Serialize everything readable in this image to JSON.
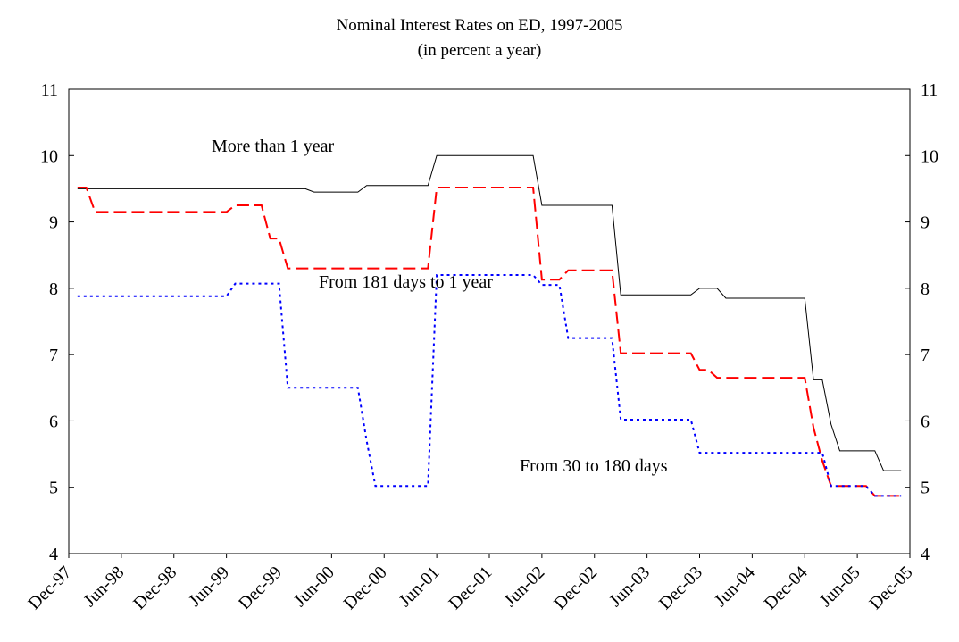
{
  "chart_data": {
    "type": "line",
    "title": "Nominal Interest Rates on ED, 1997-2005",
    "subtitle": "(in percent a year)",
    "categories": [
      "Dec-97",
      null,
      null,
      null,
      null,
      null,
      "Jun-98",
      null,
      null,
      null,
      null,
      null,
      "Dec-98",
      null,
      null,
      null,
      null,
      null,
      "Jun-99",
      null,
      null,
      null,
      null,
      null,
      "Dec-99",
      null,
      null,
      null,
      null,
      null,
      "Jun-00",
      null,
      null,
      null,
      null,
      null,
      "Dec-00",
      null,
      null,
      null,
      null,
      null,
      "Jun-01",
      null,
      null,
      null,
      null,
      null,
      "Dec-01",
      null,
      null,
      null,
      null,
      null,
      "Jun-02",
      null,
      null,
      null,
      null,
      null,
      "Dec-02",
      null,
      null,
      null,
      null,
      null,
      "Jun-03",
      null,
      null,
      null,
      null,
      null,
      "Dec-03",
      null,
      null,
      null,
      null,
      null,
      "Jun-04",
      null,
      null,
      null,
      null,
      null,
      "Dec-04",
      null,
      null,
      null,
      null,
      null,
      "Jun-05",
      null,
      null,
      null,
      null,
      null,
      "Dec-05"
    ],
    "series": [
      {
        "name": "More than 1 year",
        "color": "#000000",
        "dash": "solid",
        "values": [
          null,
          9.5,
          9.5,
          9.5,
          9.5,
          9.5,
          9.5,
          9.5,
          9.5,
          9.5,
          9.5,
          9.5,
          9.5,
          9.5,
          9.5,
          9.5,
          9.5,
          9.5,
          9.5,
          9.5,
          9.5,
          9.5,
          9.5,
          9.5,
          9.5,
          9.5,
          9.5,
          9.5,
          9.45,
          9.45,
          9.45,
          9.45,
          9.45,
          9.45,
          9.55,
          9.55,
          9.55,
          9.55,
          9.55,
          9.55,
          9.55,
          9.55,
          10,
          10,
          10,
          10,
          10,
          10,
          10,
          10,
          10,
          10,
          10,
          10,
          9.25,
          9.25,
          9.25,
          9.25,
          9.25,
          9.25,
          9.25,
          9.25,
          9.25,
          7.9,
          7.9,
          7.9,
          7.9,
          7.9,
          7.9,
          7.9,
          7.9,
          7.9,
          8,
          8,
          8,
          7.85,
          7.85,
          7.85,
          7.85,
          7.85,
          7.85,
          7.85,
          7.85,
          7.85,
          7.85,
          6.62,
          6.62,
          5.95,
          5.55,
          5.55,
          5.55,
          5.55,
          5.55,
          5.25,
          5.25,
          5.25,
          null
        ]
      },
      {
        "name": "From 181 days to 1 year",
        "color": "#ff0000",
        "dash": "dashed",
        "values": [
          null,
          9.52,
          9.52,
          9.15,
          9.15,
          9.15,
          9.15,
          9.15,
          9.15,
          9.15,
          9.15,
          9.15,
          9.15,
          9.15,
          9.15,
          9.15,
          9.15,
          9.15,
          9.15,
          9.25,
          9.25,
          9.25,
          9.25,
          8.75,
          8.75,
          8.3,
          8.3,
          8.3,
          8.3,
          8.3,
          8.3,
          8.3,
          8.3,
          8.3,
          8.3,
          8.3,
          8.3,
          8.3,
          8.3,
          8.3,
          8.3,
          8.3,
          9.52,
          9.52,
          9.52,
          9.52,
          9.52,
          9.52,
          9.52,
          9.52,
          9.52,
          9.52,
          9.52,
          9.52,
          8.13,
          8.13,
          8.13,
          8.27,
          8.27,
          8.27,
          8.27,
          8.27,
          8.27,
          7.02,
          7.02,
          7.02,
          7.02,
          7.02,
          7.02,
          7.02,
          7.02,
          7.02,
          6.77,
          6.77,
          6.65,
          6.65,
          6.65,
          6.65,
          6.65,
          6.65,
          6.65,
          6.65,
          6.65,
          6.65,
          6.65,
          5.9,
          5.4,
          5.02,
          5.02,
          5.02,
          5.02,
          5.02,
          4.87,
          4.87,
          4.87,
          4.87,
          null
        ]
      },
      {
        "name": "From 30 to 180 days",
        "color": "#0000ff",
        "dash": "dotted",
        "values": [
          null,
          7.88,
          7.88,
          7.88,
          7.88,
          7.88,
          7.88,
          7.88,
          7.88,
          7.88,
          7.88,
          7.88,
          7.88,
          7.88,
          7.88,
          7.88,
          7.88,
          7.88,
          7.88,
          8.07,
          8.07,
          8.07,
          8.07,
          8.07,
          8.07,
          6.5,
          6.5,
          6.5,
          6.5,
          6.5,
          6.5,
          6.5,
          6.5,
          6.5,
          5.7,
          5.02,
          5.02,
          5.02,
          5.02,
          5.02,
          5.02,
          5.02,
          8.2,
          8.2,
          8.2,
          8.2,
          8.2,
          8.2,
          8.2,
          8.2,
          8.2,
          8.2,
          8.2,
          8.2,
          8.05,
          8.05,
          8.05,
          7.25,
          7.25,
          7.25,
          7.25,
          7.25,
          7.25,
          6.02,
          6.02,
          6.02,
          6.02,
          6.02,
          6.02,
          6.02,
          6.02,
          6.02,
          5.52,
          5.52,
          5.52,
          5.52,
          5.52,
          5.52,
          5.52,
          5.52,
          5.52,
          5.52,
          5.52,
          5.52,
          5.52,
          5.52,
          5.52,
          5.02,
          5.02,
          5.02,
          5.02,
          5.02,
          4.87,
          4.87,
          4.87,
          4.87,
          null
        ]
      }
    ],
    "ylim": [
      4,
      11
    ],
    "yticks": [
      4,
      5,
      6,
      7,
      8,
      9,
      10,
      11
    ],
    "y2lim": [
      4,
      11
    ],
    "y2ticks": [
      4,
      5,
      6,
      7,
      8,
      9,
      10,
      11
    ],
    "grid": false
  }
}
